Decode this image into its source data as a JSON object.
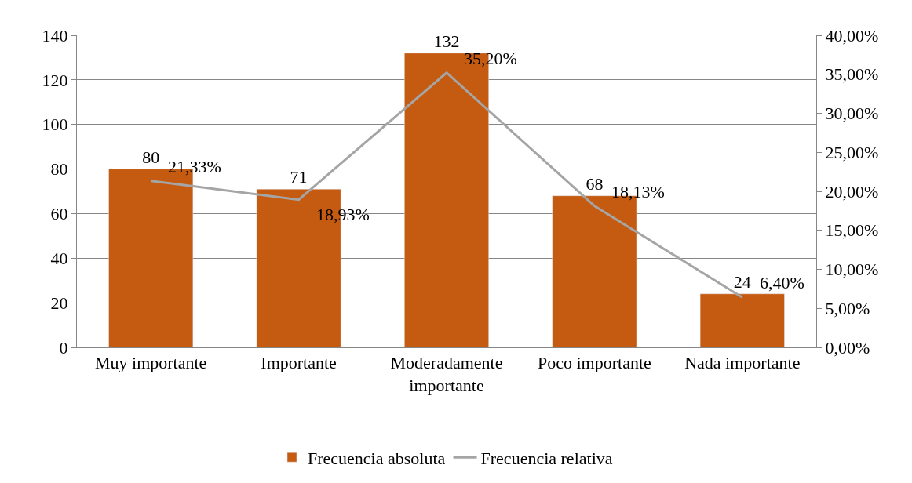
{
  "chart_data": {
    "type": "bar",
    "categories": [
      "Muy importante",
      "Importante",
      "Moderadamente importante",
      "Poco importante",
      "Nada importante"
    ],
    "series": [
      {
        "name": "Frecuencia absoluta",
        "color": "#c55a11",
        "values": [
          80,
          71,
          132,
          68,
          24
        ],
        "value_labels": [
          "80",
          "71",
          "132",
          "68",
          "24"
        ]
      },
      {
        "name": "Frecuencia relativa",
        "type": "line",
        "axis": "y2",
        "color": "#a5a5a5",
        "values": [
          21.33,
          18.93,
          35.2,
          18.13,
          6.4
        ],
        "value_labels": [
          "21,33%",
          "18,93%",
          "35,20%",
          "18,13%",
          "6,40%"
        ]
      }
    ],
    "ylim": [
      0,
      140
    ],
    "yticks": [
      0,
      20,
      40,
      60,
      80,
      100,
      120,
      140
    ],
    "y2lim": [
      0,
      40
    ],
    "y2ticks": [
      {
        "value": 0,
        "label": "0,00%"
      },
      {
        "value": 5,
        "label": "5,00%"
      },
      {
        "value": 10,
        "label": "10,00%"
      },
      {
        "value": 15,
        "label": "15,00%"
      },
      {
        "value": 20,
        "label": "20,00%"
      },
      {
        "value": 25,
        "label": "25,00%"
      },
      {
        "value": 30,
        "label": "30,00%"
      },
      {
        "value": 35,
        "label": "35,00%"
      },
      {
        "value": 40,
        "label": "40,00%"
      }
    ],
    "grid": "y",
    "legend": "bottom",
    "marker": "none",
    "line_style": "solid"
  }
}
